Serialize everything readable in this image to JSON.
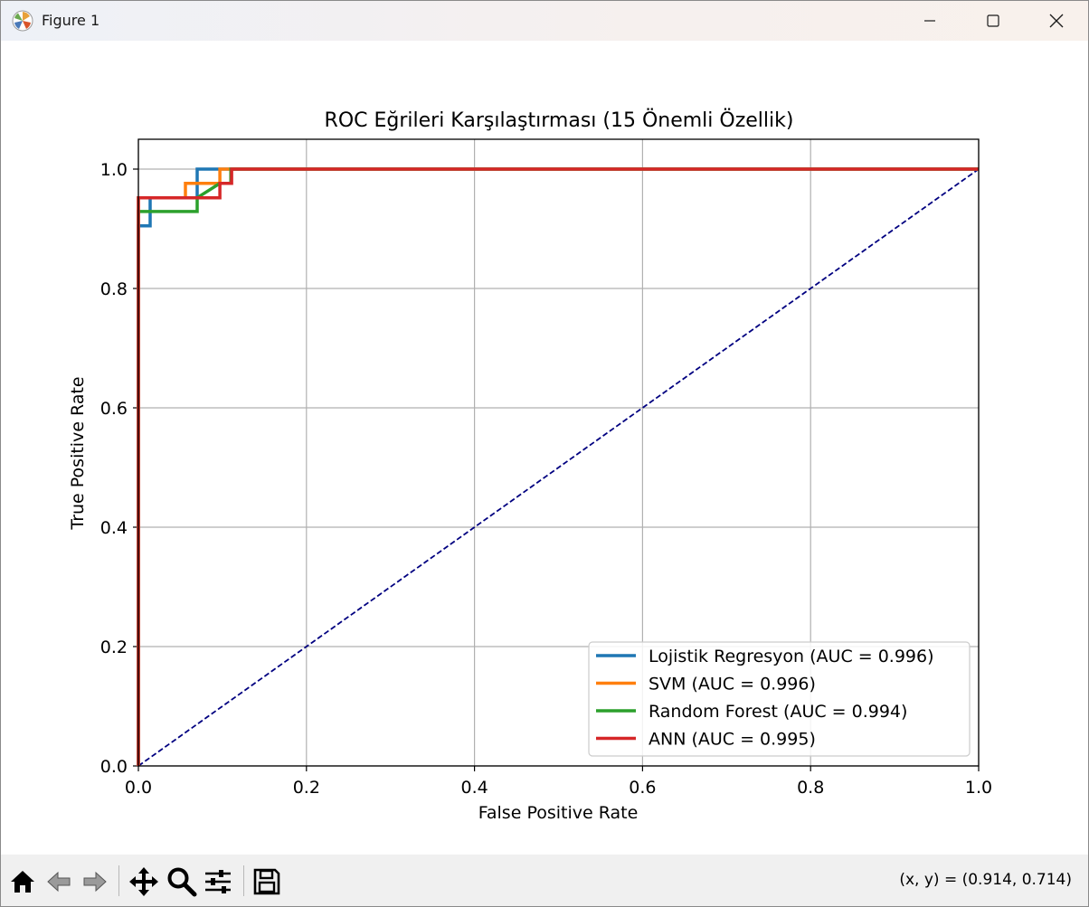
{
  "window": {
    "title": "Figure 1",
    "app_icon": "matplotlib-logo-icon",
    "controls": [
      "minimize-icon",
      "maximize-icon",
      "close-icon"
    ]
  },
  "toolbar": {
    "tools": [
      "home-icon",
      "back-arrow-icon",
      "forward-arrow-icon",
      "pan-icon",
      "zoom-icon",
      "configure-subplots-icon",
      "save-icon"
    ],
    "coordinates": "(x, y) = (0.914, 0.714)"
  },
  "chart_data": {
    "type": "line",
    "title": "ROC Eğrileri Karşılaştırması (15 Önemli Özellik)",
    "xlabel": "False Positive Rate",
    "ylabel": "True Positive Rate",
    "xlim": [
      0.0,
      1.0
    ],
    "ylim": [
      0.0,
      1.05
    ],
    "xticks": [
      "0.0",
      "0.2",
      "0.4",
      "0.6",
      "0.8",
      "1.0"
    ],
    "yticks": [
      "0.0",
      "0.2",
      "0.4",
      "0.6",
      "0.8",
      "1.0"
    ],
    "grid": true,
    "legend_position": "lower-right",
    "series": [
      {
        "name": "Lojistik Regresyon (AUC = 0.996)",
        "color": "#1f77b4",
        "x": [
          0.0,
          0.0,
          0.014,
          0.014,
          0.07,
          0.07,
          0.11,
          0.11,
          1.0
        ],
        "y": [
          0.0,
          0.905,
          0.905,
          0.952,
          0.952,
          1.0,
          1.0,
          1.0,
          1.0
        ]
      },
      {
        "name": "SVM (AUC = 0.996)",
        "color": "#ff7f0e",
        "x": [
          0.0,
          0.0,
          0.056,
          0.056,
          0.097,
          0.097,
          0.11,
          0.11,
          1.0
        ],
        "y": [
          0.0,
          0.952,
          0.952,
          0.976,
          0.976,
          1.0,
          1.0,
          1.0,
          1.0
        ]
      },
      {
        "name": "Random Forest (AUC = 0.994)",
        "color": "#2ca02c",
        "x": [
          0.0,
          0.0,
          0.07,
          0.07,
          0.097,
          0.11,
          0.11,
          1.0
        ],
        "y": [
          0.0,
          0.929,
          0.929,
          0.952,
          0.976,
          0.976,
          1.0,
          1.0
        ]
      },
      {
        "name": "ANN (AUC = 0.995)",
        "color": "#d62728",
        "x": [
          0.0,
          0.0,
          0.097,
          0.097,
          0.111,
          0.111,
          1.0
        ],
        "y": [
          0.0,
          0.952,
          0.952,
          0.976,
          0.976,
          1.0,
          1.0
        ]
      }
    ],
    "reference_line": {
      "x": [
        0.0,
        1.0
      ],
      "y": [
        0.0,
        1.0
      ],
      "color": "#000080",
      "style": "dashed"
    }
  }
}
